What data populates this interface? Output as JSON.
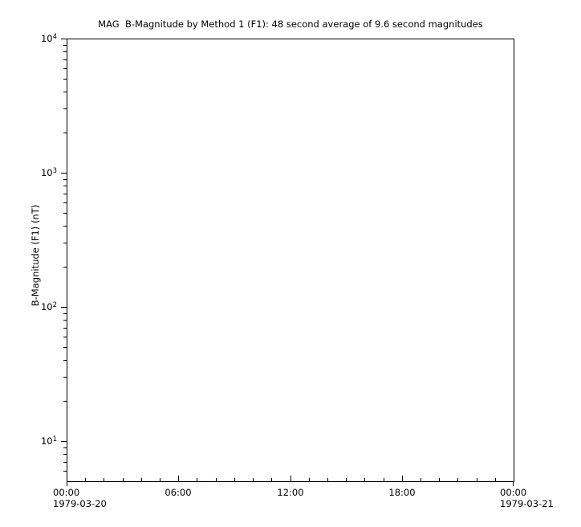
{
  "chart_data": {
    "type": "line",
    "title": "MAG  B-Magnitude by Method 1 (F1): 48 second average of 9.6 second magnitudes",
    "xlabel": "",
    "ylabel": "B-Magnitude (F1) (nT)",
    "grid": false,
    "legend": null,
    "series": [],
    "x_axis": {
      "scale": "time",
      "start_date": "1979-03-20",
      "end_date": "1979-03-21",
      "span_hours": 24,
      "minor_tick_interval_hours": 1,
      "major_tick_interval_hours": 6,
      "tick_labels": [
        {
          "hour": 0,
          "label": "00:00",
          "date": "1979-03-20"
        },
        {
          "hour": 6,
          "label": "06:00"
        },
        {
          "hour": 12,
          "label": "12:00"
        },
        {
          "hour": 18,
          "label": "18:00"
        },
        {
          "hour": 24,
          "label": "00:00",
          "date": "1979-03-21"
        }
      ]
    },
    "y_axis": {
      "scale": "log",
      "min": 5,
      "max": 10000,
      "major_ticks": [
        {
          "value": 10000,
          "base": "10",
          "exponent": "4"
        },
        {
          "value": 1000,
          "base": "10",
          "exponent": "3"
        },
        {
          "value": 100,
          "base": "10",
          "exponent": "2"
        },
        {
          "value": 10,
          "base": "10",
          "exponent": "1"
        }
      ],
      "minor_tick_mantissas": [
        2,
        3,
        4,
        5,
        6,
        7,
        8,
        9
      ]
    },
    "colors": {
      "foreground": "#000000",
      "background": "#ffffff"
    }
  }
}
